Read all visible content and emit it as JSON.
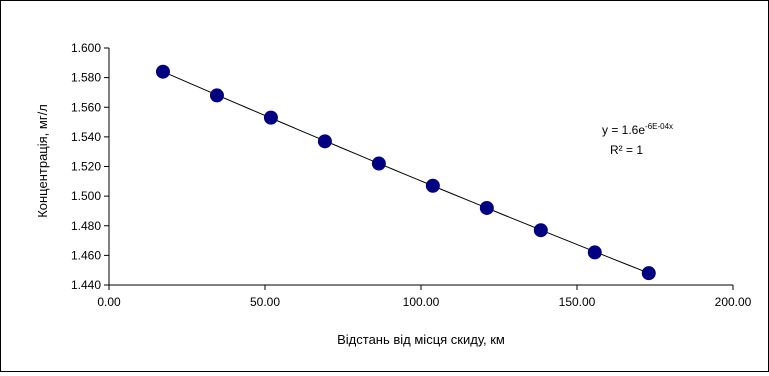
{
  "chart_data": {
    "type": "scatter",
    "title": "",
    "xlabel": "Відстань від місця скиду, км",
    "ylabel": "Концентрація, мг/л",
    "xlim": [
      0,
      200
    ],
    "ylim": [
      1.44,
      1.6
    ],
    "x_ticks": [
      "0.00",
      "50.00",
      "100.00",
      "150.00",
      "200.00"
    ],
    "y_ticks": [
      "1.440",
      "1.460",
      "1.480",
      "1.500",
      "1.520",
      "1.540",
      "1.560",
      "1.580",
      "1.600"
    ],
    "grid": false,
    "legend": "none",
    "marker_color": "#000080",
    "series": [
      {
        "x": [
          17.3,
          34.6,
          51.9,
          69.2,
          86.5,
          103.8,
          121.1,
          138.4,
          155.7,
          173.0
        ],
        "values": [
          1.584,
          1.568,
          1.553,
          1.537,
          1.522,
          1.507,
          1.492,
          1.477,
          1.462,
          1.448
        ]
      }
    ],
    "trendline": {
      "type": "exponential",
      "equation_base": "y = 1.6e",
      "equation_exponent": "-6E-04x",
      "r2_label": "R² = 1"
    }
  }
}
